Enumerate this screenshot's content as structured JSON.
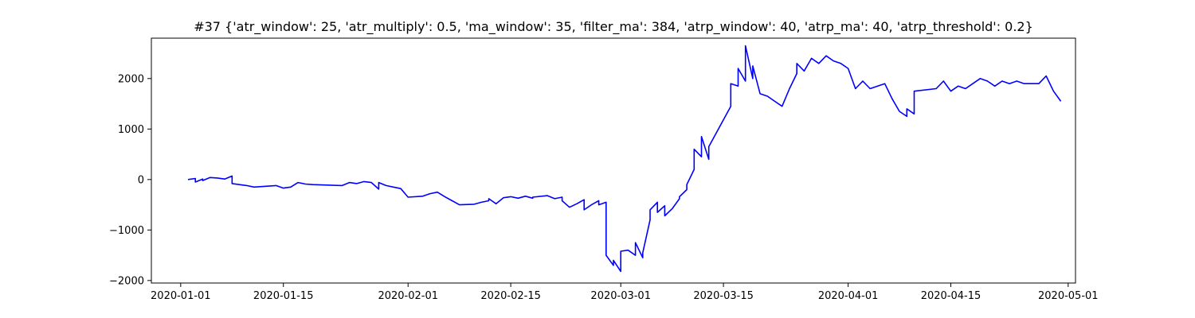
{
  "chart_data": {
    "type": "line",
    "title": "#37 {'atr_window': 25, 'atr_multiply': 0.5, 'ma_window': 35, 'filter_ma': 384, 'atrp_window': 40, 'atrp_ma': 40, 'atrp_threshold': 0.2}",
    "xlabel": "",
    "ylabel": "",
    "x_type": "date",
    "xlim": [
      "2019-12-28",
      "2020-05-02"
    ],
    "ylim": [
      -2050,
      2800
    ],
    "grid": false,
    "x_ticks": [
      "2020-01-01",
      "2020-01-15",
      "2020-02-01",
      "2020-02-15",
      "2020-03-01",
      "2020-03-15",
      "2020-04-01",
      "2020-04-15",
      "2020-05-01"
    ],
    "y_ticks": [
      -2000,
      -1000,
      0,
      1000,
      2000
    ],
    "y_tick_labels": [
      "−2000",
      "−1000",
      "0",
      "1000",
      "2000"
    ],
    "series": [
      {
        "color": "#0000ff",
        "points": [
          [
            "2020-01-02",
            0
          ],
          [
            "2020-01-03",
            20
          ],
          [
            "2020-01-03",
            -50
          ],
          [
            "2020-01-04",
            10
          ],
          [
            "2020-01-04",
            -20
          ],
          [
            "2020-01-05",
            40
          ],
          [
            "2020-01-06",
            30
          ],
          [
            "2020-01-07",
            10
          ],
          [
            "2020-01-08",
            70
          ],
          [
            "2020-01-08",
            -80
          ],
          [
            "2020-01-09",
            -100
          ],
          [
            "2020-01-10",
            -120
          ],
          [
            "2020-01-11",
            -150
          ],
          [
            "2020-01-13",
            -130
          ],
          [
            "2020-01-14",
            -120
          ],
          [
            "2020-01-15",
            -170
          ],
          [
            "2020-01-16",
            -150
          ],
          [
            "2020-01-17",
            -60
          ],
          [
            "2020-01-18",
            -90
          ],
          [
            "2020-01-19",
            -100
          ],
          [
            "2020-01-21",
            -110
          ],
          [
            "2020-01-23",
            -120
          ],
          [
            "2020-01-24",
            -60
          ],
          [
            "2020-01-25",
            -80
          ],
          [
            "2020-01-26",
            -40
          ],
          [
            "2020-01-27",
            -60
          ],
          [
            "2020-01-28",
            -190
          ],
          [
            "2020-01-28",
            -60
          ],
          [
            "2020-01-29",
            -120
          ],
          [
            "2020-01-30",
            -150
          ],
          [
            "2020-01-31",
            -180
          ],
          [
            "2020-02-01",
            -350
          ],
          [
            "2020-02-03",
            -330
          ],
          [
            "2020-02-04",
            -280
          ],
          [
            "2020-02-05",
            -250
          ],
          [
            "2020-02-06",
            -340
          ],
          [
            "2020-02-07",
            -420
          ],
          [
            "2020-02-08",
            -500
          ],
          [
            "2020-02-10",
            -490
          ],
          [
            "2020-02-11",
            -450
          ],
          [
            "2020-02-12",
            -420
          ],
          [
            "2020-02-12",
            -380
          ],
          [
            "2020-02-13",
            -480
          ],
          [
            "2020-02-14",
            -360
          ],
          [
            "2020-02-15",
            -340
          ],
          [
            "2020-02-16",
            -370
          ],
          [
            "2020-02-17",
            -330
          ],
          [
            "2020-02-18",
            -370
          ],
          [
            "2020-02-18",
            -350
          ],
          [
            "2020-02-20",
            -320
          ],
          [
            "2020-02-21",
            -380
          ],
          [
            "2020-02-22",
            -350
          ],
          [
            "2020-02-22",
            -420
          ],
          [
            "2020-02-23",
            -550
          ],
          [
            "2020-02-24",
            -480
          ],
          [
            "2020-02-25",
            -400
          ],
          [
            "2020-02-25",
            -600
          ],
          [
            "2020-02-26",
            -500
          ],
          [
            "2020-02-27",
            -420
          ],
          [
            "2020-02-27",
            -500
          ],
          [
            "2020-02-28",
            -450
          ],
          [
            "2020-02-28",
            -700
          ],
          [
            "2020-02-28",
            -950
          ],
          [
            "2020-02-28",
            -1200
          ],
          [
            "2020-02-28",
            -1500
          ],
          [
            "2020-02-29",
            -1700
          ],
          [
            "2020-02-29",
            -1600
          ],
          [
            "2020-03-01",
            -1820
          ],
          [
            "2020-03-01",
            -1420
          ],
          [
            "2020-03-02",
            -1400
          ],
          [
            "2020-03-03",
            -1500
          ],
          [
            "2020-03-03",
            -1250
          ],
          [
            "2020-03-04",
            -1550
          ],
          [
            "2020-03-04",
            -1450
          ],
          [
            "2020-03-05",
            -800
          ],
          [
            "2020-03-05",
            -600
          ],
          [
            "2020-03-06",
            -450
          ],
          [
            "2020-03-06",
            -650
          ],
          [
            "2020-03-07",
            -520
          ],
          [
            "2020-03-07",
            -720
          ],
          [
            "2020-03-08",
            -580
          ],
          [
            "2020-03-09",
            -380
          ],
          [
            "2020-03-09",
            -340
          ],
          [
            "2020-03-10",
            -200
          ],
          [
            "2020-03-10",
            -100
          ],
          [
            "2020-03-11",
            200
          ],
          [
            "2020-03-11",
            600
          ],
          [
            "2020-03-12",
            450
          ],
          [
            "2020-03-12",
            850
          ],
          [
            "2020-03-13",
            400
          ],
          [
            "2020-03-13",
            650
          ],
          [
            "2020-03-16",
            1450
          ],
          [
            "2020-03-16",
            1900
          ],
          [
            "2020-03-17",
            1850
          ],
          [
            "2020-03-17",
            2200
          ],
          [
            "2020-03-18",
            1950
          ],
          [
            "2020-03-18",
            2650
          ],
          [
            "2020-03-19",
            2000
          ],
          [
            "2020-03-19",
            2250
          ],
          [
            "2020-03-20",
            1700
          ],
          [
            "2020-03-21",
            1650
          ],
          [
            "2020-03-22",
            1550
          ],
          [
            "2020-03-23",
            1450
          ],
          [
            "2020-03-24",
            1800
          ],
          [
            "2020-03-25",
            2100
          ],
          [
            "2020-03-25",
            2300
          ],
          [
            "2020-03-26",
            2150
          ],
          [
            "2020-03-27",
            2400
          ],
          [
            "2020-03-28",
            2300
          ],
          [
            "2020-03-29",
            2450
          ],
          [
            "2020-03-30",
            2350
          ],
          [
            "2020-03-31",
            2300
          ],
          [
            "2020-04-01",
            2200
          ],
          [
            "2020-04-02",
            1800
          ],
          [
            "2020-04-03",
            1950
          ],
          [
            "2020-04-04",
            1800
          ],
          [
            "2020-04-06",
            1900
          ],
          [
            "2020-04-07",
            1600
          ],
          [
            "2020-04-08",
            1350
          ],
          [
            "2020-04-09",
            1250
          ],
          [
            "2020-04-09",
            1400
          ],
          [
            "2020-04-10",
            1300
          ],
          [
            "2020-04-10",
            1750
          ],
          [
            "2020-04-13",
            1800
          ],
          [
            "2020-04-14",
            1950
          ],
          [
            "2020-04-15",
            1750
          ],
          [
            "2020-04-16",
            1850
          ],
          [
            "2020-04-17",
            1800
          ],
          [
            "2020-04-18",
            1900
          ],
          [
            "2020-04-19",
            2000
          ],
          [
            "2020-04-20",
            1950
          ],
          [
            "2020-04-21",
            1850
          ],
          [
            "2020-04-22",
            1950
          ],
          [
            "2020-04-23",
            1900
          ],
          [
            "2020-04-24",
            1950
          ],
          [
            "2020-04-25",
            1900
          ],
          [
            "2020-04-27",
            1900
          ],
          [
            "2020-04-28",
            2050
          ],
          [
            "2020-04-29",
            1750
          ],
          [
            "2020-04-30",
            1550
          ]
        ]
      }
    ]
  }
}
